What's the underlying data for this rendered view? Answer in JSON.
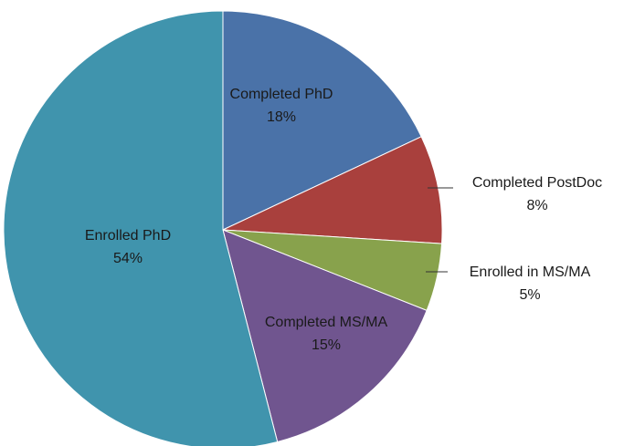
{
  "chart_data": {
    "type": "pie",
    "categories": [
      "Completed PhD",
      "Completed PostDoc",
      "Enrolled in MS/MA",
      "Completed MS/MA",
      "Enrolled PhD"
    ],
    "values": [
      18,
      8,
      5,
      15,
      54
    ],
    "value_labels": [
      "18%",
      "8%",
      "5%",
      "15%",
      "54%"
    ],
    "colors": [
      "#4a72a8",
      "#a9403d",
      "#88a24c",
      "#70558f",
      "#4094ad"
    ]
  }
}
